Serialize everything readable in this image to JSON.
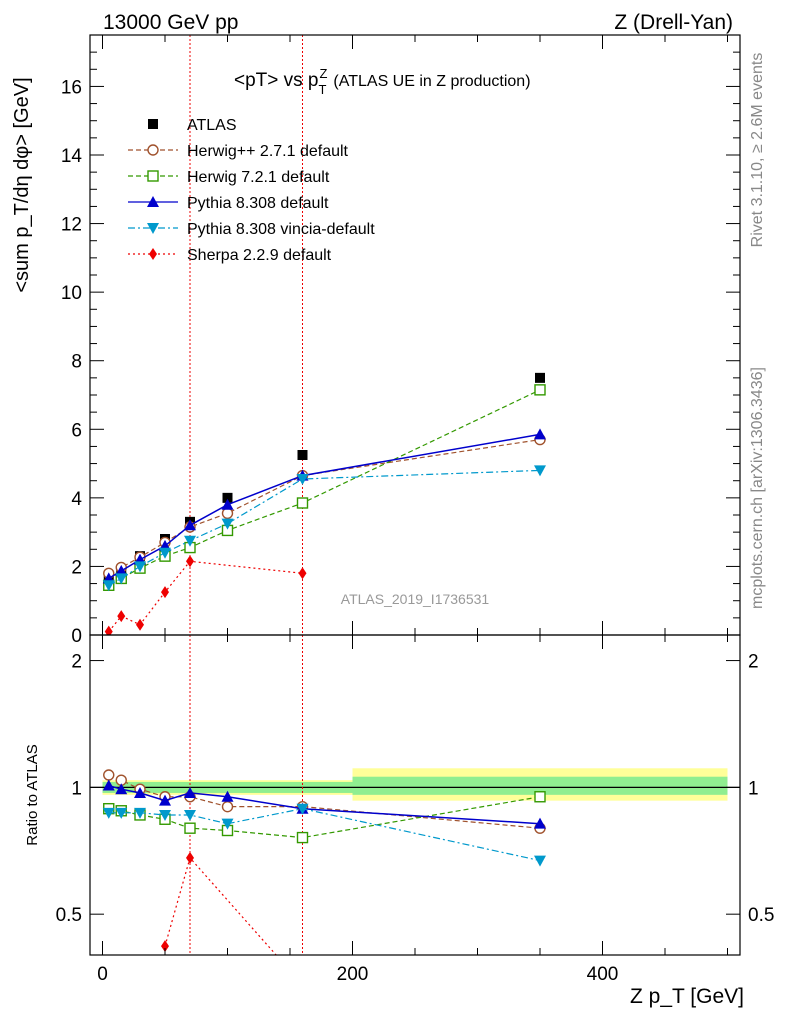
{
  "header": {
    "left": "13000 GeV pp",
    "right": "Z (Drell-Yan)"
  },
  "side_labels": {
    "top": "Rivet 3.1.10, ≥ 2.6M events",
    "bottom": "mcplots.cern.ch [arXiv:1306.3436]"
  },
  "colors": {
    "atlas": "#000000",
    "herwigpp": "#a0522d",
    "herwig7": "#339900",
    "pythia": "#0000cc",
    "vincia": "#0099cc",
    "sherpa": "#ee0000",
    "band_inner": "#90ee90",
    "band_outer": "#ffff99"
  },
  "chart_data": [
    {
      "type": "line",
      "title": "<pT> vs p_T^Z (ATLAS UE in Z production)",
      "title_main": "<pT> vs p",
      "title_sup": "Z",
      "title_sub": "T",
      "title_rest": "(ATLAS UE in Z production)",
      "ylabel": "<sum p_T/dη dφ> [GeV]",
      "xlabel": "Z p_T [GeV]",
      "xlim": [
        -10,
        510
      ],
      "ylim": [
        0,
        17.5
      ],
      "yticks": [
        0,
        2,
        4,
        6,
        8,
        10,
        12,
        14,
        16
      ],
      "watermark": "ATLAS_2019_I1736531",
      "vertical_lines_x": [
        70,
        160
      ],
      "legend_position": "top-left",
      "series": [
        {
          "name": "ATLAS",
          "key": "atlas",
          "marker": "square-filled",
          "line": "none",
          "x": [
            5,
            15,
            30,
            50,
            70,
            100,
            160,
            350
          ],
          "y": [
            1.65,
            1.9,
            2.3,
            2.8,
            3.3,
            4.0,
            5.25,
            7.5
          ]
        },
        {
          "name": "Herwig++ 2.7.1 default",
          "key": "herwigpp",
          "marker": "circle-open",
          "line": "dashed",
          "x": [
            5,
            15,
            30,
            50,
            70,
            100,
            160,
            350
          ],
          "y": [
            1.8,
            1.97,
            2.27,
            2.7,
            3.15,
            3.55,
            4.65,
            5.7
          ]
        },
        {
          "name": "Herwig 7.2.1 default",
          "key": "herwig7",
          "marker": "square-open",
          "line": "dashed",
          "x": [
            5,
            15,
            30,
            50,
            70,
            100,
            160,
            350
          ],
          "y": [
            1.45,
            1.65,
            1.95,
            2.3,
            2.55,
            3.05,
            3.85,
            7.15
          ]
        },
        {
          "name": "Pythia 8.308 default",
          "key": "pythia",
          "marker": "triangle-up",
          "line": "solid",
          "x": [
            5,
            15,
            30,
            50,
            70,
            100,
            160,
            350
          ],
          "y": [
            1.65,
            1.87,
            2.2,
            2.6,
            3.2,
            3.8,
            4.65,
            5.85
          ]
        },
        {
          "name": "Pythia 8.308 vincia-default",
          "key": "vincia",
          "marker": "triangle-down",
          "line": "dashdot",
          "x": [
            5,
            15,
            30,
            50,
            70,
            100,
            160,
            350
          ],
          "y": [
            1.45,
            1.65,
            2.0,
            2.4,
            2.75,
            3.25,
            4.55,
            4.8
          ]
        },
        {
          "name": "Sherpa 2.2.9 default",
          "key": "sherpa",
          "marker": "diamond",
          "line": "dotted",
          "x": [
            5,
            15,
            30,
            50,
            70,
            160
          ],
          "y": [
            0.1,
            0.55,
            0.3,
            1.25,
            2.15,
            1.8
          ]
        }
      ]
    },
    {
      "type": "line",
      "ylabel": "Ratio to ATLAS",
      "xlabel": "Z p_T [GeV]",
      "xlim": [
        -10,
        510
      ],
      "ylim": [
        0.4,
        2.3
      ],
      "yticks": [
        0.5,
        1,
        2
      ],
      "xticks": [
        0,
        200,
        400
      ],
      "scale": "log",
      "reference_line": 1.0,
      "bands": [
        {
          "x": [
            0,
            200
          ],
          "inner": [
            0.97,
            1.03
          ],
          "outer": [
            0.96,
            1.04
          ]
        },
        {
          "x": [
            200,
            500
          ],
          "inner": [
            0.96,
            1.06
          ],
          "outer": [
            0.93,
            1.11
          ]
        }
      ],
      "series": [
        {
          "key": "herwigpp",
          "marker": "circle-open",
          "line": "dashed",
          "x": [
            5,
            15,
            30,
            50,
            70,
            100,
            160,
            350
          ],
          "y": [
            1.07,
            1.04,
            0.99,
            0.95,
            0.95,
            0.9,
            0.9,
            0.8
          ]
        },
        {
          "key": "herwig7",
          "marker": "square-open",
          "line": "dashed",
          "x": [
            5,
            15,
            30,
            50,
            70,
            100,
            160,
            350
          ],
          "y": [
            0.89,
            0.88,
            0.86,
            0.84,
            0.8,
            0.79,
            0.76,
            0.95
          ]
        },
        {
          "key": "pythia",
          "marker": "triangle-up",
          "line": "solid",
          "x": [
            5,
            15,
            30,
            50,
            70,
            100,
            160,
            350
          ],
          "y": [
            1.01,
            0.99,
            0.97,
            0.93,
            0.97,
            0.95,
            0.89,
            0.82
          ]
        },
        {
          "key": "vincia",
          "marker": "triangle-down",
          "line": "dashdot",
          "x": [
            5,
            15,
            30,
            50,
            70,
            100,
            160,
            350
          ],
          "y": [
            0.87,
            0.87,
            0.87,
            0.86,
            0.86,
            0.82,
            0.89,
            0.67
          ]
        },
        {
          "key": "sherpa",
          "marker": "diamond",
          "line": "dotted",
          "x": [
            50,
            70,
            160
          ],
          "y": [
            0.42,
            0.68,
            0.34
          ]
        }
      ]
    }
  ]
}
